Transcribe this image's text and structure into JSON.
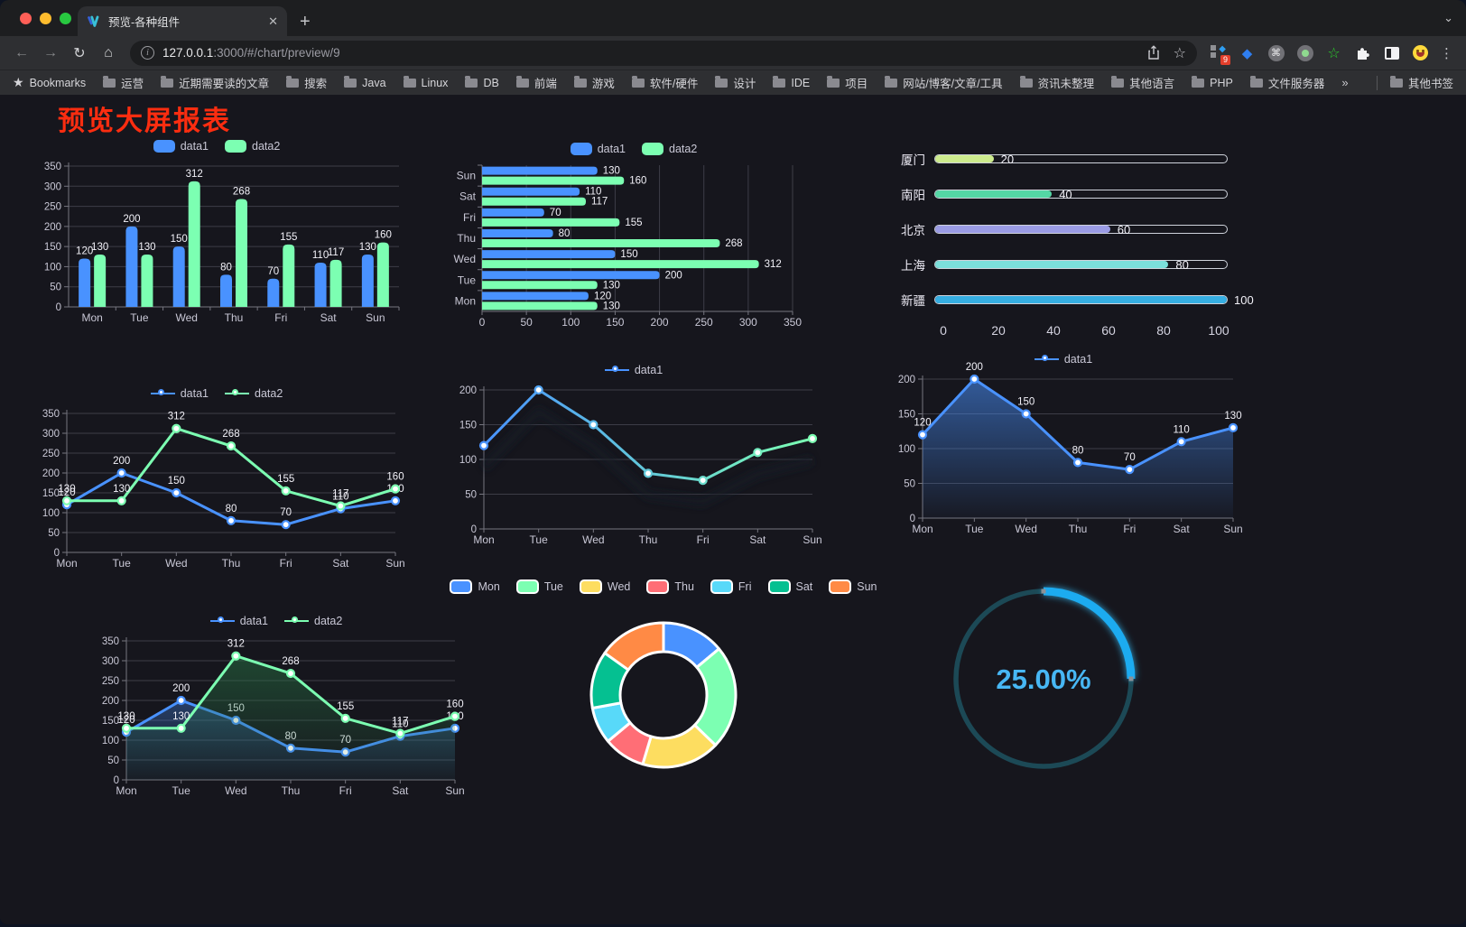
{
  "browser": {
    "tab": {
      "title": "预览-各种组件",
      "close_glyph": "✕",
      "new_tab_glyph": "+",
      "chevron_glyph": "⌄"
    },
    "toolbar": {
      "back_glyph": "←",
      "forward_glyph": "→",
      "reload_glyph": "↻",
      "home_glyph": "⌂",
      "url_host": "127.0.0.1",
      "url_rest": ":3000/#/chart/preview/9",
      "star_glyph": "☆",
      "menu_glyph": "⋮",
      "extension_badge": "9",
      "command_glyph": "⌘",
      "gem_glyph": "◆",
      "green_star_glyph": "☆",
      "grid_diamond_glyph": "◆"
    },
    "bookmarks": {
      "star_glyph": "★",
      "label": "Bookmarks",
      "items": [
        "运营",
        "近期需要读的文章",
        "搜索",
        "Java",
        "Linux",
        "DB",
        "前端",
        "游戏",
        "软件/硬件",
        "设计",
        "IDE",
        "项目",
        "网站/博客/文章/工具",
        "资讯未整理",
        "其他语言",
        "PHP",
        "文件服务器"
      ],
      "overflow_glyph": "»",
      "other_bookmarks": "其他书签"
    }
  },
  "page": {
    "title": "预览大屏报表",
    "title_color": "#fb2d10"
  },
  "chart_data": [
    {
      "id": "grouped-bar",
      "type": "bar",
      "legend_icon": "rect",
      "categories": [
        "Mon",
        "Tue",
        "Wed",
        "Thu",
        "Fri",
        "Sat",
        "Sun"
      ],
      "series": [
        {
          "name": "data1",
          "color": "#4992ff",
          "values": [
            120,
            200,
            150,
            80,
            70,
            110,
            130
          ]
        },
        {
          "name": "data2",
          "color": "#7cffb2",
          "values": [
            130,
            130,
            312,
            268,
            155,
            117,
            160
          ]
        }
      ],
      "ylim": [
        0,
        350
      ],
      "ystep": 50,
      "labels": true
    },
    {
      "id": "grouped-horizontal-bar",
      "type": "hbar",
      "legend_icon": "rect",
      "categories": [
        "Mon",
        "Tue",
        "Wed",
        "Thu",
        "Fri",
        "Sat",
        "Sun"
      ],
      "series": [
        {
          "name": "data1",
          "color": "#4992ff",
          "values": [
            120,
            200,
            150,
            80,
            70,
            110,
            130
          ]
        },
        {
          "name": "data2",
          "color": "#7cffb2",
          "values": [
            130,
            130,
            312,
            268,
            155,
            117,
            160
          ]
        }
      ],
      "xlim": [
        0,
        350
      ],
      "xstep": 50,
      "labels": true
    },
    {
      "id": "city-progress",
      "type": "progress",
      "items": [
        {
          "label": "厦门",
          "value": 20,
          "color": "#cdeb8d"
        },
        {
          "label": "南阳",
          "value": 40,
          "color": "#54d7a5"
        },
        {
          "label": "北京",
          "value": 60,
          "color": "#9b9ce5"
        },
        {
          "label": "上海",
          "value": 80,
          "color": "#7bdfdb"
        },
        {
          "label": "新疆",
          "value": 100,
          "color": "#36aee2"
        }
      ],
      "xlim": [
        0,
        100
      ],
      "xticks": [
        0,
        20,
        40,
        60,
        80,
        100
      ]
    },
    {
      "id": "two-line",
      "type": "line",
      "legend_icon": "line",
      "categories": [
        "Mon",
        "Tue",
        "Wed",
        "Thu",
        "Fri",
        "Sat",
        "Sun"
      ],
      "series": [
        {
          "name": "data1",
          "color": "#4992ff",
          "values": [
            120,
            200,
            150,
            80,
            70,
            110,
            130
          ]
        },
        {
          "name": "data2",
          "color": "#7cffb2",
          "values": [
            130,
            130,
            312,
            268,
            155,
            117,
            160
          ]
        }
      ],
      "ylim": [
        0,
        350
      ],
      "ystep": 50,
      "labels": true
    },
    {
      "id": "gradient-line",
      "type": "line",
      "legend_icon": "line",
      "categories": [
        "Mon",
        "Tue",
        "Wed",
        "Thu",
        "Fri",
        "Sat",
        "Sun"
      ],
      "series": [
        {
          "name": "data1",
          "color": "#4992ff",
          "gradient": [
            "#4992ff",
            "#7cffb2"
          ],
          "values": [
            120,
            200,
            150,
            80,
            70,
            110,
            130
          ]
        }
      ],
      "ylim": [
        0,
        200
      ],
      "ystep": 50,
      "labels": false,
      "shadow": true
    },
    {
      "id": "blue-area-line",
      "type": "line",
      "legend_icon": "line",
      "categories": [
        "Mon",
        "Tue",
        "Wed",
        "Thu",
        "Fri",
        "Sat",
        "Sun"
      ],
      "series": [
        {
          "name": "data1",
          "color": "#4992ff",
          "area": true,
          "values": [
            120,
            200,
            150,
            80,
            70,
            110,
            130
          ]
        }
      ],
      "ylim": [
        0,
        200
      ],
      "ystep": 50,
      "labels": true
    },
    {
      "id": "two-line-area",
      "type": "line",
      "legend_icon": "line",
      "categories": [
        "Mon",
        "Tue",
        "Wed",
        "Thu",
        "Fri",
        "Sat",
        "Sun"
      ],
      "series": [
        {
          "name": "data1",
          "color": "#4992ff",
          "area": true,
          "values": [
            120,
            200,
            150,
            80,
            70,
            110,
            130
          ]
        },
        {
          "name": "data2",
          "color": "#7cffb2",
          "area": true,
          "values": [
            130,
            130,
            312,
            268,
            155,
            117,
            160
          ]
        }
      ],
      "ylim": [
        0,
        350
      ],
      "ystep": 50,
      "labels": true
    },
    {
      "id": "week-donut",
      "type": "pie",
      "legend_icon": "rect-bordered",
      "labels": [
        "Mon",
        "Tue",
        "Wed",
        "Thu",
        "Fri",
        "Sat",
        "Sun"
      ],
      "values": [
        120,
        200,
        150,
        80,
        70,
        110,
        130
      ],
      "colors": [
        "#4992ff",
        "#7cffb2",
        "#fddd60",
        "#ff6e76",
        "#58d9f9",
        "#05c091",
        "#ff8a45"
      ]
    },
    {
      "id": "percent-gauge",
      "type": "gauge",
      "value_text": "25.00%",
      "percent": 25,
      "color": "#1babf0",
      "track_color": "#1c4956",
      "text_color": "#47b7f4"
    }
  ]
}
